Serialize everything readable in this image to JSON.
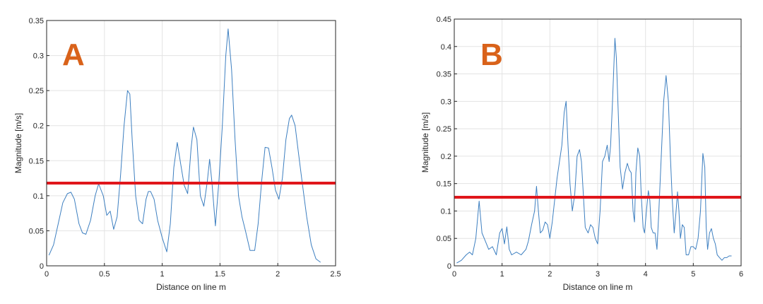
{
  "colors": {
    "series": "#3d7fc0",
    "threshold": "#e0161b",
    "panel_letter": "#d9621a"
  },
  "chart_data": [
    {
      "type": "line",
      "panel_label": "A",
      "xlabel": "Distance on line m",
      "ylabel": "Magnitude [m/s]",
      "xlim": [
        0,
        2.5
      ],
      "ylim": [
        0,
        0.35
      ],
      "xticks": [
        0,
        0.5,
        1,
        1.5,
        2,
        2.5
      ],
      "yticks": [
        0,
        0.05,
        0.1,
        0.15,
        0.2,
        0.25,
        0.3,
        0.35
      ],
      "xtick_labels": [
        "0",
        "0.5",
        "1",
        "1.5",
        "2",
        "2.5"
      ],
      "ytick_labels": [
        "0",
        "0.05",
        "0.1",
        "0.15",
        "0.2",
        "0.25",
        "0.3",
        "0.35"
      ],
      "grid": true,
      "threshold": 0.118,
      "series": [
        {
          "x": [
            0.02,
            0.06,
            0.1,
            0.14,
            0.18,
            0.21,
            0.24,
            0.28,
            0.31,
            0.34,
            0.38,
            0.42,
            0.45,
            0.49,
            0.52,
            0.55,
            0.58,
            0.61,
            0.64,
            0.67,
            0.7,
            0.72,
            0.74,
            0.77,
            0.8,
            0.83,
            0.86,
            0.88,
            0.9,
            0.93,
            0.96,
            1.0,
            1.04,
            1.07,
            1.1,
            1.13,
            1.16,
            1.19,
            1.22,
            1.25,
            1.27,
            1.3,
            1.33,
            1.36,
            1.39,
            1.41,
            1.43,
            1.46,
            1.49,
            1.52,
            1.55,
            1.57,
            1.6,
            1.63,
            1.66,
            1.69,
            1.72,
            1.76,
            1.8,
            1.83,
            1.86,
            1.89,
            1.92,
            1.95,
            1.98,
            2.01,
            2.04,
            2.07,
            2.1,
            2.12,
            2.15,
            2.18,
            2.21,
            2.25,
            2.29,
            2.33,
            2.37
          ],
          "y": [
            0.015,
            0.03,
            0.06,
            0.09,
            0.103,
            0.105,
            0.095,
            0.06,
            0.047,
            0.045,
            0.065,
            0.1,
            0.117,
            0.1,
            0.072,
            0.078,
            0.052,
            0.07,
            0.13,
            0.2,
            0.25,
            0.245,
            0.18,
            0.1,
            0.065,
            0.06,
            0.095,
            0.106,
            0.106,
            0.095,
            0.065,
            0.04,
            0.02,
            0.06,
            0.14,
            0.176,
            0.145,
            0.115,
            0.103,
            0.168,
            0.198,
            0.18,
            0.1,
            0.085,
            0.12,
            0.152,
            0.12,
            0.057,
            0.12,
            0.2,
            0.3,
            0.338,
            0.28,
            0.18,
            0.1,
            0.07,
            0.05,
            0.022,
            0.022,
            0.06,
            0.12,
            0.169,
            0.168,
            0.14,
            0.108,
            0.095,
            0.125,
            0.18,
            0.21,
            0.215,
            0.2,
            0.16,
            0.12,
            0.07,
            0.03,
            0.01,
            0.005
          ]
        }
      ]
    },
    {
      "type": "line",
      "panel_label": "B",
      "xlabel": "Distance on line m",
      "ylabel": "Magnitude [m/s]",
      "xlim": [
        0,
        6
      ],
      "ylim": [
        0,
        0.45
      ],
      "xticks": [
        0,
        1,
        2,
        3,
        4,
        5,
        6
      ],
      "yticks": [
        0,
        0.05,
        0.1,
        0.15,
        0.2,
        0.25,
        0.3,
        0.35,
        0.4,
        0.45
      ],
      "xtick_labels": [
        "0",
        "1",
        "2",
        "3",
        "4",
        "5",
        "6"
      ],
      "ytick_labels": [
        "0",
        "0.05",
        "0.1",
        "0.15",
        "0.2",
        "0.25",
        "0.3",
        "0.35",
        "0.4",
        "0.45"
      ],
      "grid": true,
      "threshold": 0.125,
      "series": [
        {
          "x": [
            0.05,
            0.15,
            0.25,
            0.32,
            0.38,
            0.45,
            0.52,
            0.58,
            0.65,
            0.72,
            0.8,
            0.88,
            0.95,
            1.0,
            1.05,
            1.1,
            1.15,
            1.2,
            1.3,
            1.4,
            1.5,
            1.55,
            1.62,
            1.68,
            1.72,
            1.76,
            1.8,
            1.85,
            1.9,
            1.95,
            2.0,
            2.05,
            2.1,
            2.15,
            2.2,
            2.25,
            2.3,
            2.34,
            2.38,
            2.42,
            2.47,
            2.52,
            2.57,
            2.62,
            2.66,
            2.7,
            2.74,
            2.8,
            2.85,
            2.9,
            2.95,
            3.0,
            3.05,
            3.1,
            3.15,
            3.2,
            3.24,
            3.27,
            3.31,
            3.36,
            3.39,
            3.43,
            3.47,
            3.52,
            3.57,
            3.62,
            3.66,
            3.7,
            3.74,
            3.77,
            3.8,
            3.84,
            3.88,
            3.91,
            3.95,
            3.98,
            4.02,
            4.06,
            4.09,
            4.12,
            4.16,
            4.2,
            4.24,
            4.28,
            4.33,
            4.38,
            4.43,
            4.48,
            4.52,
            4.56,
            4.6,
            4.64,
            4.67,
            4.7,
            4.73,
            4.77,
            4.81,
            4.85,
            4.9,
            4.95,
            5.0,
            5.05,
            5.1,
            5.15,
            5.2,
            5.24,
            5.27,
            5.3,
            5.34,
            5.38,
            5.42,
            5.46,
            5.5,
            5.55,
            5.6,
            5.65,
            5.7,
            5.75,
            5.8
          ],
          "y": [
            0.005,
            0.01,
            0.02,
            0.025,
            0.02,
            0.05,
            0.118,
            0.06,
            0.045,
            0.03,
            0.035,
            0.02,
            0.06,
            0.068,
            0.04,
            0.071,
            0.03,
            0.02,
            0.025,
            0.02,
            0.03,
            0.045,
            0.076,
            0.1,
            0.145,
            0.1,
            0.06,
            0.065,
            0.08,
            0.075,
            0.05,
            0.08,
            0.12,
            0.16,
            0.19,
            0.22,
            0.28,
            0.3,
            0.22,
            0.15,
            0.1,
            0.13,
            0.2,
            0.212,
            0.19,
            0.13,
            0.07,
            0.06,
            0.075,
            0.07,
            0.05,
            0.04,
            0.1,
            0.19,
            0.2,
            0.22,
            0.19,
            0.22,
            0.3,
            0.415,
            0.38,
            0.28,
            0.18,
            0.14,
            0.17,
            0.187,
            0.175,
            0.17,
            0.1,
            0.08,
            0.17,
            0.215,
            0.2,
            0.13,
            0.07,
            0.06,
            0.1,
            0.137,
            0.12,
            0.07,
            0.06,
            0.06,
            0.03,
            0.1,
            0.2,
            0.3,
            0.347,
            0.3,
            0.2,
            0.12,
            0.06,
            0.1,
            0.135,
            0.1,
            0.05,
            0.075,
            0.07,
            0.02,
            0.02,
            0.035,
            0.035,
            0.03,
            0.05,
            0.1,
            0.205,
            0.18,
            0.07,
            0.03,
            0.06,
            0.068,
            0.05,
            0.04,
            0.02,
            0.015,
            0.01,
            0.015,
            0.015,
            0.018,
            0.018
          ]
        }
      ]
    }
  ]
}
